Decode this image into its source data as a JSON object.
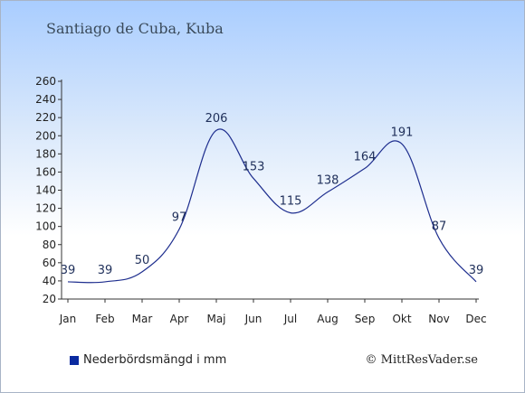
{
  "header": {
    "title": "Santiago de Cuba, Kuba"
  },
  "chart_data": {
    "type": "line",
    "categories": [
      "Jan",
      "Feb",
      "Mar",
      "Apr",
      "Maj",
      "Jun",
      "Jul",
      "Aug",
      "Sep",
      "Okt",
      "Nov",
      "Dec"
    ],
    "series": [
      {
        "name": "Nederbördsmängd i mm",
        "values": [
          39,
          39,
          50,
          97,
          206,
          153,
          115,
          138,
          164,
          191,
          87,
          39
        ]
      }
    ],
    "yticks": [
      20,
      40,
      60,
      80,
      100,
      120,
      140,
      160,
      180,
      200,
      220,
      240,
      260
    ],
    "ylim": [
      20,
      260
    ],
    "title": "",
    "xlabel": "",
    "ylabel": "",
    "grid": false,
    "legend_position": "bottom-left",
    "line_color": "#1f2f8f"
  },
  "legend": {
    "label": "Nederbördsmängd i mm",
    "color": "#0a2aa0"
  },
  "footer": {
    "copyright": "© MittResVader.se"
  }
}
